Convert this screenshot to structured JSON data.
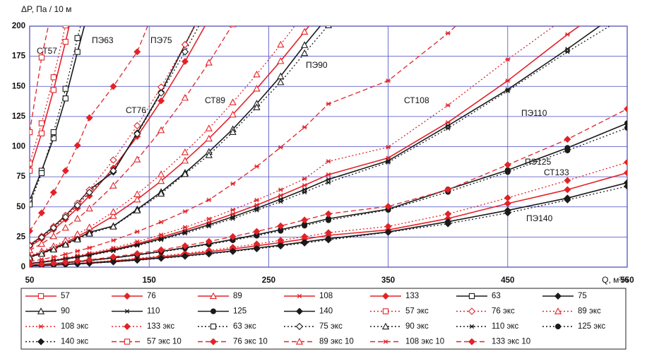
{
  "chart_data": {
    "type": "line",
    "ylabel": "ΔP, Па / 10 м",
    "xlabel": "Q, м³/ч",
    "xlim": [
      50,
      550
    ],
    "xticks": [
      50,
      150,
      250,
      350,
      450,
      550
    ],
    "ylim": [
      0,
      200
    ],
    "yticks": [
      0,
      25,
      50,
      75,
      100,
      125,
      150,
      175,
      200
    ],
    "grid": true,
    "legend": "bottom",
    "annotations": [
      {
        "text": "СТ57",
        "color": "#e32228"
      },
      {
        "text": "ПЭ63",
        "color": "#1a1a1a"
      },
      {
        "text": "ПЭ75",
        "color": "#1a1a1a"
      },
      {
        "text": "СТ76",
        "color": "#e32228"
      },
      {
        "text": "СТ89",
        "color": "#e32228"
      },
      {
        "text": "ПЭ90",
        "color": "#1a1a1a"
      },
      {
        "text": "СТ108",
        "color": "#e32228"
      },
      {
        "text": "ПЭ110",
        "color": "#1a1a1a"
      },
      {
        "text": "ПЭ125",
        "color": "#1a1a1a"
      },
      {
        "text": "СТ133",
        "color": "#e32228"
      },
      {
        "text": "ПЭ140",
        "color": "#1a1a1a"
      }
    ],
    "x": [
      50,
      60,
      70,
      80,
      90,
      100,
      120,
      140,
      160,
      180,
      200,
      220,
      240,
      260,
      280,
      300,
      350,
      400,
      450,
      500,
      550
    ],
    "series": [
      {
        "name": "57",
        "color": "#e32228",
        "dash": "solid",
        "marker": "square-open",
        "values": [
          80,
          111,
          147,
          187,
          230,
          null,
          null,
          null,
          null,
          null,
          null,
          null,
          null,
          null,
          null,
          null,
          null,
          null,
          null,
          null,
          null
        ]
      },
      {
        "name": "76",
        "color": "#e32228",
        "dash": "solid",
        "marker": "diamond",
        "values": [
          17,
          23.6,
          31.2,
          39.7,
          49,
          59.2,
          82.2,
          108.5,
          138,
          170.7,
          206,
          null,
          null,
          null,
          null,
          null,
          null,
          null,
          null,
          null,
          null
        ]
      },
      {
        "name": "89",
        "color": "#e32228",
        "dash": "solid",
        "marker": "triangle-open",
        "values": [
          8.8,
          12.2,
          16.1,
          20.5,
          25.4,
          30.6,
          42.5,
          56.2,
          71.5,
          88.4,
          106.7,
          126.7,
          148.2,
          171.1,
          195.4,
          220.9,
          null,
          null,
          null,
          null,
          null
        ]
      },
      {
        "name": "108",
        "color": "#e32228",
        "dash": "solid",
        "marker": "asterisk",
        "values": [
          3.1,
          4.2,
          5.6,
          7.1,
          8.8,
          10.7,
          14.8,
          19.5,
          24.8,
          30.7,
          37.1,
          44.1,
          51.5,
          59.5,
          67.9,
          76.8,
          90.6,
          120.1,
          154.7,
          193.1,
          228.3
        ]
      },
      {
        "name": "133",
        "color": "#e32228",
        "dash": "solid",
        "marker": "diamond",
        "values": [
          1.1,
          1.5,
          1.9,
          2.4,
          3,
          3.7,
          5.1,
          6.7,
          8.5,
          10.5,
          12.7,
          15.1,
          17.7,
          20.4,
          23.3,
          26.4,
          30.9,
          40.3,
          52.8,
          64.3,
          78.3
        ]
      },
      {
        "name": "63",
        "color": "#1a1a1a",
        "dash": "solid",
        "marker": "square-open",
        "values": [
          55,
          80,
          107,
          140,
          178.6,
          215.9,
          null,
          null,
          null,
          null,
          null,
          null,
          null,
          null,
          null,
          null,
          null,
          null,
          null,
          null,
          null
        ]
      },
      {
        "name": "75",
        "color": "#1a1a1a",
        "dash": "solid",
        "marker": "diamond",
        "values": [
          18.4,
          25.5,
          33.7,
          42.9,
          53,
          64.1,
          78.9,
          111.4,
          145.4,
          184.7,
          223.2,
          null,
          null,
          null,
          null,
          null,
          null,
          null,
          null,
          null,
          null
        ]
      },
      {
        "name": "90",
        "color": "#1a1a1a",
        "dash": "solid",
        "marker": "triangle-open",
        "values": [
          8.3,
          11.5,
          15.2,
          19.4,
          23.9,
          28.9,
          34.1,
          48,
          62.4,
          78.3,
          95.7,
          114.5,
          135.8,
          158.4,
          184.3,
          208.3,
          null,
          null,
          null,
          null,
          null
        ]
      },
      {
        "name": "110",
        "color": "#1a1a1a",
        "dash": "solid",
        "marker": "asterisk",
        "values": [
          2.9,
          4,
          5.3,
          6.8,
          8.4,
          10.1,
          14,
          18.5,
          23.5,
          29.1,
          35.2,
          41.8,
          48.8,
          56.4,
          64.4,
          72.8,
          88.3,
          117.4,
          147.4,
          181,
          216.3
        ]
      },
      {
        "name": "125",
        "color": "#1a1a1a",
        "dash": "solid",
        "marker": "circle",
        "values": [
          1.6,
          2.2,
          2.9,
          3.7,
          4.6,
          5.6,
          7.7,
          10.2,
          13,
          16.1,
          19.4,
          23,
          26.9,
          31.1,
          35.5,
          40.2,
          48.1,
          64.5,
          80.5,
          99,
          119.4
        ]
      },
      {
        "name": "140",
        "color": "#1a1a1a",
        "dash": "solid",
        "marker": "diamond",
        "values": [
          0.9,
          1.3,
          1.7,
          2.2,
          2.7,
          3.3,
          4.5,
          6,
          7.6,
          9.4,
          11.4,
          13.5,
          15.8,
          18.3,
          20.9,
          23.6,
          29.2,
          37.7,
          47.1,
          57.3,
          70.1
        ]
      },
      {
        "name": "57 экс",
        "color": "#e32228",
        "dash": "dotted",
        "marker": "square-open",
        "values": [
          86,
          119.4,
          157.6,
          200.6,
          null,
          null,
          null,
          null,
          null,
          null,
          null,
          null,
          null,
          null,
          null,
          null,
          null,
          null,
          null,
          null,
          null
        ]
      },
      {
        "name": "76 экс",
        "color": "#e32228",
        "dash": "dotted",
        "marker": "diamond-open",
        "values": [
          18.4,
          25.5,
          33.7,
          42.9,
          53,
          64.1,
          88.9,
          117.4,
          149.4,
          184.7,
          223.2,
          null,
          null,
          null,
          null,
          null,
          null,
          null,
          null,
          null,
          null
        ]
      },
      {
        "name": "89 экс",
        "color": "#e32228",
        "dash": "dotted",
        "marker": "triangle-open",
        "values": [
          9.5,
          13.2,
          17.4,
          22.2,
          27.4,
          33.1,
          45.9,
          60.6,
          77.1,
          95.4,
          115.2,
          136.8,
          160,
          184.7,
          210.9,
          null,
          null,
          null,
          null,
          null,
          null
        ]
      },
      {
        "name": "108 экс",
        "color": "#e32228",
        "dash": "dotted",
        "marker": "asterisk",
        "values": [
          3.3,
          4.6,
          6,
          7.7,
          9.5,
          11.5,
          15.9,
          21.1,
          26.8,
          33.1,
          40,
          47.5,
          55.6,
          64.2,
          73.3,
          87.8,
          99.6,
          134.3,
          172.3,
          208.2,
          null
        ]
      },
      {
        "name": "133 экс",
        "color": "#e32228",
        "dash": "dotted",
        "marker": "diamond",
        "values": [
          1.1,
          1.6,
          2.1,
          2.7,
          3.3,
          4,
          5.5,
          7.3,
          9.3,
          11.4,
          13.8,
          16.4,
          19.2,
          22.2,
          25.3,
          28.6,
          33.8,
          44.1,
          57.5,
          71.9,
          87
        ]
      },
      {
        "name": "63 экс",
        "color": "#1a1a1a",
        "dash": "dotted",
        "marker": "square-open",
        "values": [
          52,
          78,
          112,
          148,
          190.1,
          229.8,
          null,
          null,
          null,
          null,
          null,
          null,
          null,
          null,
          null,
          null,
          null,
          null,
          null,
          null,
          null
        ]
      },
      {
        "name": "75 экс",
        "color": "#1a1a1a",
        "dash": "dotted",
        "marker": "diamond-open",
        "values": [
          17.8,
          24.7,
          32.6,
          41.5,
          51.3,
          62,
          80,
          110.6,
          144.5,
          178.7,
          215.9,
          null,
          null,
          null,
          null,
          null,
          null,
          null,
          null,
          null,
          null
        ]
      },
      {
        "name": "90 экс",
        "color": "#1a1a1a",
        "dash": "dotted",
        "marker": "triangle-open",
        "values": [
          8,
          11.1,
          14.7,
          18.7,
          23,
          27.9,
          33.7,
          47.1,
          61,
          77.3,
          93,
          112.2,
          132.7,
          153.5,
          177.6,
          200.8,
          null,
          null,
          null,
          null,
          null
        ]
      },
      {
        "name": "110 экс",
        "color": "#1a1a1a",
        "dash": "dotted",
        "marker": "asterisk",
        "values": [
          2.8,
          3.9,
          5.1,
          6.5,
          8.1,
          9.7,
          13.5,
          17.9,
          22.7,
          28.1,
          34,
          40.3,
          47.2,
          54.4,
          62.2,
          70.3,
          87,
          115.2,
          146.2,
          178.7,
          208.9
        ]
      },
      {
        "name": "125 экс",
        "color": "#1a1a1a",
        "dash": "dotted",
        "marker": "circle",
        "values": [
          1.6,
          2.2,
          2.8,
          3.6,
          4.5,
          5.4,
          7.5,
          9.9,
          12.6,
          15.6,
          18.8,
          22.3,
          26.1,
          30.1,
          34.4,
          38.9,
          47.5,
          62.4,
          78.9,
          96.8,
          115.6
        ]
      },
      {
        "name": "140 экс",
        "color": "#1a1a1a",
        "dash": "dotted",
        "marker": "diamond",
        "values": [
          0.9,
          1.2,
          1.6,
          2.1,
          2.6,
          3.1,
          4.3,
          5.7,
          7.3,
          9,
          10.9,
          13,
          15.2,
          17.5,
          20,
          22.6,
          28.9,
          36,
          45,
          55.8,
          67.1
        ]
      },
      {
        "name": "57 экс 10",
        "color": "#e32228",
        "dash": "dashed",
        "marker": "square-open",
        "values": [
          112,
          174,
          220,
          null,
          null,
          null,
          null,
          null,
          null,
          null,
          null,
          null,
          null,
          null,
          null,
          null,
          null,
          null,
          null,
          null,
          null
        ]
      },
      {
        "name": "76 экс 10",
        "color": "#e32228",
        "dash": "dashed",
        "marker": "diamond",
        "values": [
          30,
          45,
          62,
          80,
          101,
          124,
          150,
          178.7,
          227.4,
          null,
          null,
          null,
          null,
          null,
          null,
          null,
          null,
          null,
          null,
          null,
          null
        ]
      },
      {
        "name": "89 экс 10",
        "color": "#e32228",
        "dash": "dashed",
        "marker": "triangle-open",
        "values": [
          14,
          19.4,
          25.7,
          32.7,
          40.3,
          48.7,
          67.7,
          89.4,
          113.7,
          140.6,
          169.8,
          201.6,
          null,
          null,
          null,
          null,
          null,
          null,
          null,
          null,
          null
        ]
      },
      {
        "name": "108 экс 10",
        "color": "#e32228",
        "dash": "dashed",
        "marker": "asterisk",
        "values": [
          4.6,
          6.4,
          8.4,
          10.7,
          13.3,
          16,
          22.2,
          29.4,
          37.4,
          46.2,
          55.8,
          69.2,
          83.5,
          99.4,
          116.1,
          135.5,
          154.7,
          194.1,
          240.1,
          null,
          null
        ]
      },
      {
        "name": "133 экс 10",
        "color": "#e32228",
        "dash": "dashed",
        "marker": "diamond",
        "values": [
          1.8,
          2.4,
          3.2,
          4.1,
          5.1,
          6.1,
          8.5,
          11.2,
          14.3,
          17.7,
          21.3,
          25.3,
          29.6,
          34.2,
          39.1,
          44.2,
          50.4,
          64.3,
          84.9,
          106.1,
          131.3
        ]
      }
    ]
  }
}
